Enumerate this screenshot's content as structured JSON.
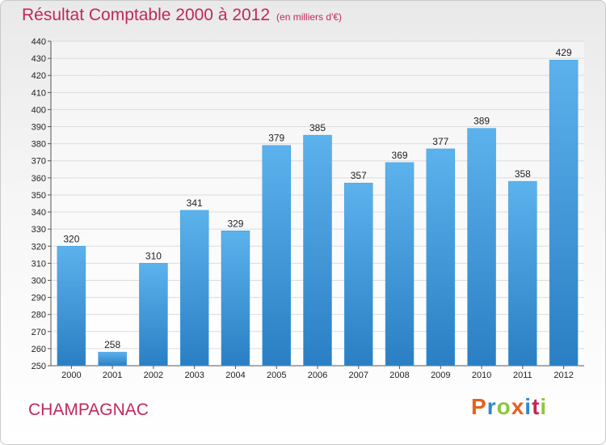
{
  "title": "Résultat Comptable 2000 à 2012",
  "subtitle": "(en milliers d'€)",
  "commune": "CHAMPAGNAC",
  "logo": {
    "letters": [
      "P",
      "r",
      "o",
      "x",
      "i",
      "t",
      "i"
    ],
    "colors": [
      "#e8601c",
      "#2f88d0",
      "#8cc63f",
      "#e8601c",
      "#2f88d0",
      "#c0285a",
      "#8cc63f"
    ]
  },
  "colors": {
    "bar": "#3f9ee0",
    "title": "#c0285a"
  },
  "chart_data": {
    "type": "bar",
    "title": "Résultat Comptable 2000 à 2012",
    "subtitle": "(en milliers d'€)",
    "categories": [
      "2000",
      "2001",
      "2002",
      "2003",
      "2004",
      "2005",
      "2006",
      "2007",
      "2008",
      "2009",
      "2010",
      "2011",
      "2012"
    ],
    "values": [
      320,
      258,
      310,
      341,
      329,
      379,
      385,
      357,
      369,
      377,
      389,
      358,
      429
    ],
    "ylim": [
      250,
      440
    ],
    "yticks": [
      250,
      260,
      270,
      280,
      290,
      300,
      310,
      320,
      330,
      340,
      350,
      360,
      370,
      380,
      390,
      400,
      410,
      420,
      430,
      440
    ],
    "grid": true,
    "legend": "none"
  }
}
